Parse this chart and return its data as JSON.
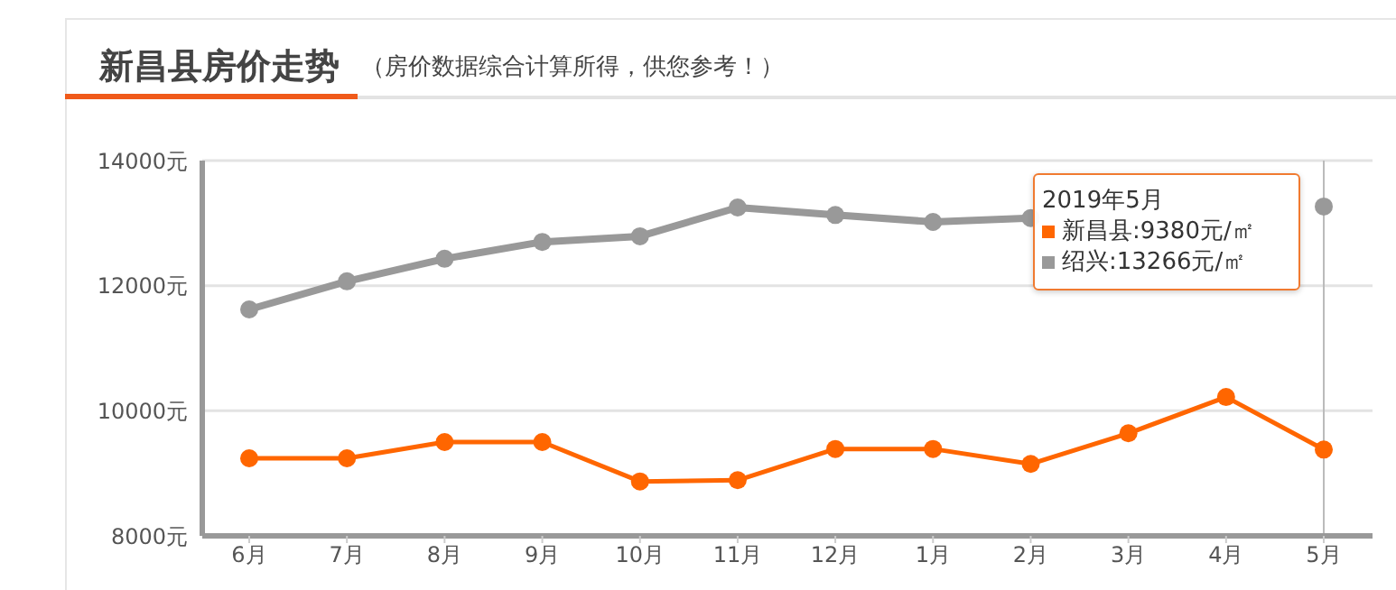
{
  "chart_data": {
    "type": "line",
    "title": "新昌县房价走势",
    "subtitle": "（房价数据综合计算所得，供您参考！）",
    "annotations": [
      "2019年5月",
      "新昌县:9380元/㎡",
      "绍兴:13266元/㎡"
    ],
    "categories": [
      "6月",
      "7月",
      "8月",
      "9月",
      "10月",
      "11月",
      "12月",
      "1月",
      "2月",
      "3月",
      "4月",
      "5月"
    ],
    "series": [
      {
        "color": "#ff6600",
        "values": [
          9240,
          9240,
          9500,
          9500,
          8870,
          8890,
          9390,
          9390,
          9150,
          9640,
          10220,
          9380
        ]
      },
      {
        "color": "#999999",
        "values": [
          11620,
          12070,
          12430,
          12700,
          12790,
          13250,
          13130,
          13020,
          13080,
          null,
          null,
          13266
        ]
      }
    ],
    "ylim": [
      8000,
      14000
    ],
    "yticks": [
      {
        "value": 8000,
        "label": "8000元"
      },
      {
        "value": 10000,
        "label": "10000元"
      },
      {
        "value": 12000,
        "label": "12000元"
      },
      {
        "value": 14000,
        "label": "14000元"
      }
    ],
    "ref_lines": [
      {
        "axis": "x",
        "value": "5月",
        "color": "#bbbbbb"
      }
    ],
    "grid": "y",
    "marker": "circle",
    "line_style": "solid"
  }
}
